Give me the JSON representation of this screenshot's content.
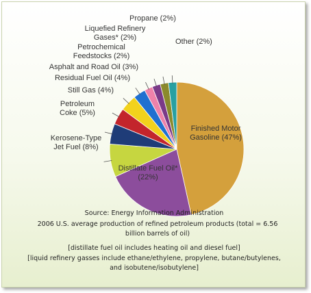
{
  "chart_data": {
    "type": "pie",
    "categories": [
      "Finished Motor Gasoline",
      "Distillate Fuel Oil*",
      "Kerosene-Type Jet Fuel",
      "Petroleum Coke",
      "Still Gas",
      "Residual Fuel Oil",
      "Asphalt and Road Oil",
      "Petrochemical Feedstocks",
      "Liquefied Refinery Gases*",
      "Propane",
      "Other"
    ],
    "values": [
      47,
      22,
      8,
      5,
      4,
      4,
      3,
      2,
      2,
      2,
      2
    ],
    "value_labels": [
      "(47%)",
      "(22%)",
      "(8%)",
      "(5%)",
      "(4%)",
      "(4%)",
      "(3%)",
      "(2%)",
      "(2%)",
      "(2%)",
      "(2%)"
    ],
    "colors": [
      "#d4a03c",
      "#8c4d9c",
      "#c6d640",
      "#1f3c78",
      "#c3252c",
      "#f2d21c",
      "#2070d0",
      "#ee82aa",
      "#7a3a88",
      "#8b8a2c",
      "#28a0a2"
    ],
    "notes": [
      "Source: Energy Information Administration",
      "2006 U.S. average production of refined petroleum products (total = 6.56 billion barrels of oil)",
      "[distillate fuel oil includes heating oil and diesel fuel]",
      "[liquid refinery gasses include ethane/ethylene, propylene, butane/butylenes, and isobutene/isobutylene]"
    ]
  }
}
